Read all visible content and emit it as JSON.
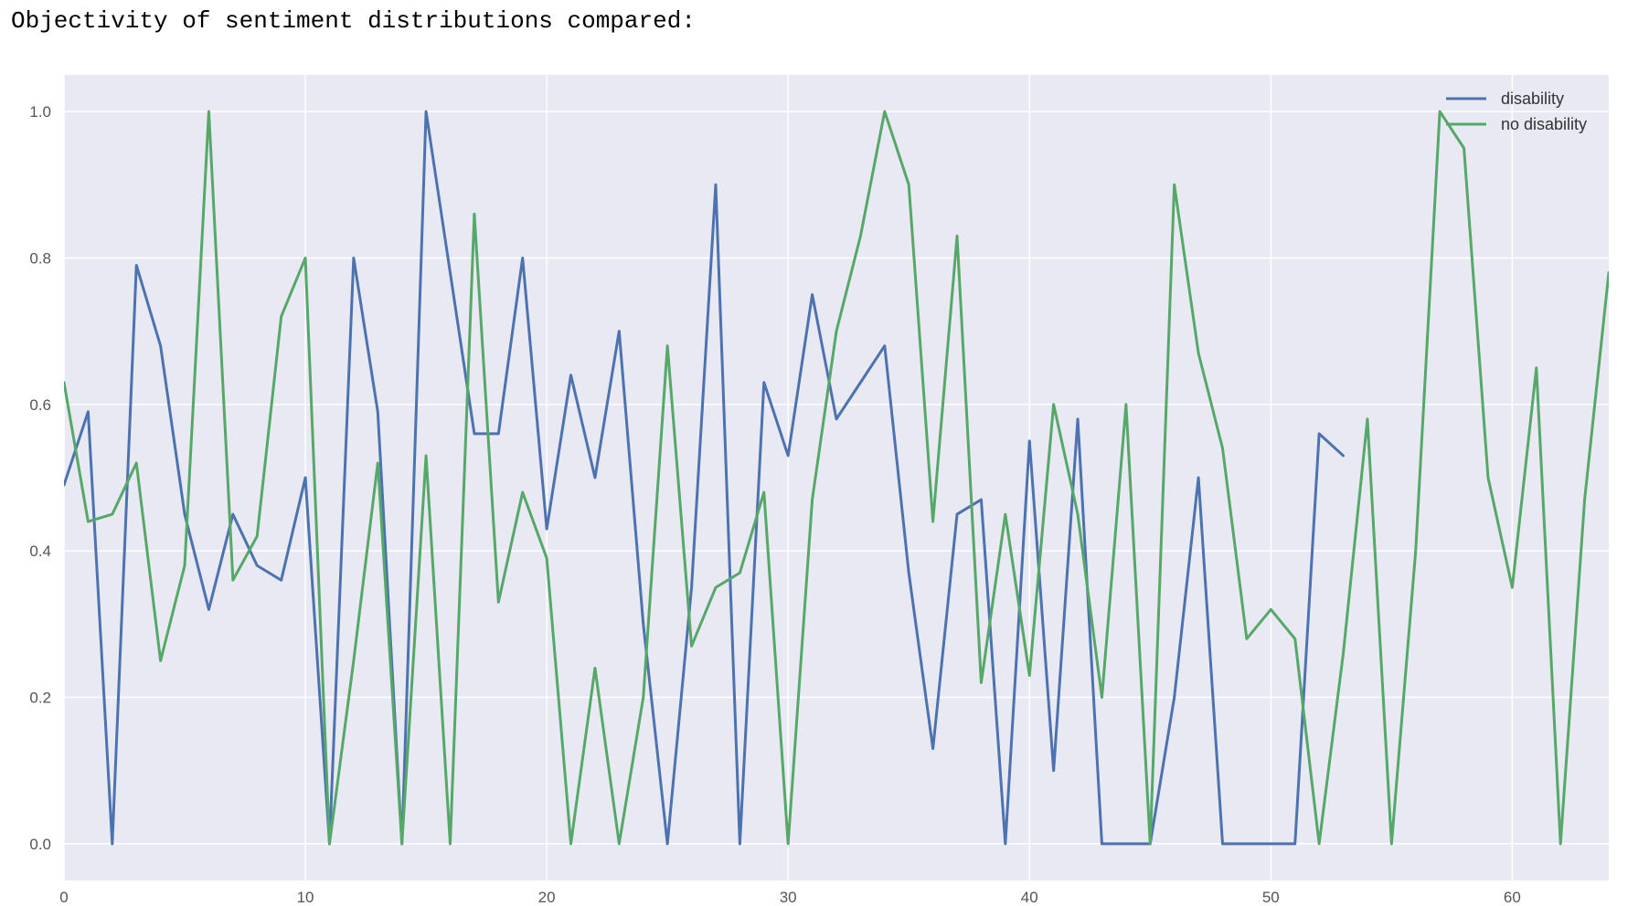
{
  "header": {
    "title": "Objectivity of sentiment distributions compared:"
  },
  "chart_data": {
    "type": "line",
    "xlim": [
      0,
      64
    ],
    "ylim": [
      -0.05,
      1.05
    ],
    "x_ticks": [
      0,
      10,
      20,
      30,
      40,
      50,
      60
    ],
    "y_ticks": [
      0.0,
      0.2,
      0.4,
      0.6,
      0.8,
      1.0
    ],
    "x_tick_labels": [
      "0",
      "10",
      "20",
      "30",
      "40",
      "50",
      "60"
    ],
    "y_tick_labels": [
      "0.0",
      "0.2",
      "0.4",
      "0.6",
      "0.8",
      "1.0"
    ],
    "grid": true,
    "legend_position": "top-right",
    "background": "#e8e9f2",
    "series": [
      {
        "name": "disability",
        "color": "#4c72b0",
        "x": [
          0,
          1,
          2,
          3,
          4,
          5,
          6,
          7,
          8,
          9,
          10,
          11,
          12,
          13,
          14,
          15,
          16,
          17,
          18,
          19,
          20,
          21,
          22,
          23,
          24,
          25,
          26,
          27,
          28,
          29,
          30,
          31,
          32,
          33,
          34,
          35,
          36,
          37,
          38,
          39,
          40,
          41,
          42,
          43,
          44,
          45,
          46,
          47,
          48,
          49,
          50,
          51,
          52,
          53
        ],
        "values": [
          0.49,
          0.59,
          0.0,
          0.79,
          0.68,
          0.45,
          0.32,
          0.45,
          0.38,
          0.36,
          0.5,
          0.0,
          0.8,
          0.59,
          0.0,
          1.0,
          0.78,
          0.56,
          0.56,
          0.8,
          0.43,
          0.64,
          0.5,
          0.7,
          0.3,
          0.0,
          0.35,
          0.9,
          0.0,
          0.63,
          0.53,
          0.75,
          0.58,
          0.63,
          0.68,
          0.37,
          0.13,
          0.45,
          0.47,
          0.0,
          0.55,
          0.1,
          0.58,
          0.0,
          0.0,
          0.0,
          0.2,
          0.5,
          0.0,
          0.0,
          0.0,
          0.0,
          0.56,
          0.53
        ]
      },
      {
        "name": "no disability",
        "color": "#55a868",
        "x": [
          0,
          1,
          2,
          3,
          4,
          5,
          6,
          7,
          8,
          9,
          10,
          11,
          12,
          13,
          14,
          15,
          16,
          17,
          18,
          19,
          20,
          21,
          22,
          23,
          24,
          25,
          26,
          27,
          28,
          29,
          30,
          31,
          32,
          33,
          34,
          35,
          36,
          37,
          38,
          39,
          40,
          41,
          42,
          43,
          44,
          45,
          46,
          47,
          48,
          49,
          50,
          51,
          52,
          53,
          54,
          55,
          56,
          57,
          58,
          59,
          60,
          61,
          62,
          63,
          64
        ],
        "values": [
          0.63,
          0.44,
          0.45,
          0.52,
          0.25,
          0.38,
          1.0,
          0.36,
          0.42,
          0.72,
          0.8,
          0.0,
          0.25,
          0.52,
          0.0,
          0.53,
          0.0,
          0.86,
          0.33,
          0.48,
          0.39,
          0.0,
          0.24,
          0.0,
          0.2,
          0.68,
          0.27,
          0.35,
          0.37,
          0.48,
          0.0,
          0.47,
          0.7,
          0.83,
          1.0,
          0.9,
          0.44,
          0.83,
          0.22,
          0.45,
          0.23,
          0.6,
          0.45,
          0.2,
          0.6,
          0.0,
          0.9,
          0.67,
          0.54,
          0.28,
          0.32,
          0.28,
          0.0,
          0.26,
          0.58,
          0.0,
          0.4,
          1.0,
          0.95,
          0.5,
          0.35,
          0.65,
          0.0,
          0.47,
          0.78
        ]
      }
    ]
  }
}
